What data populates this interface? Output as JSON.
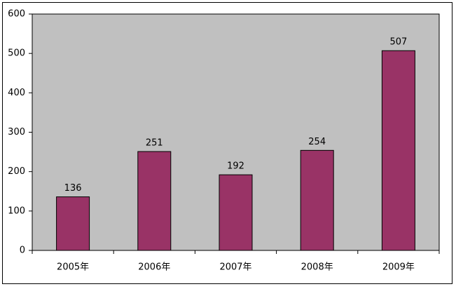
{
  "chart_data": {
    "type": "bar",
    "categories": [
      "2005年",
      "2006年",
      "2007年",
      "2008年",
      "2009年"
    ],
    "values": [
      136,
      251,
      192,
      254,
      507
    ],
    "color": "#993366",
    "ylim": [
      0,
      600
    ],
    "yticks": [
      0,
      100,
      200,
      300,
      400,
      500,
      600
    ],
    "data_labels": true
  }
}
